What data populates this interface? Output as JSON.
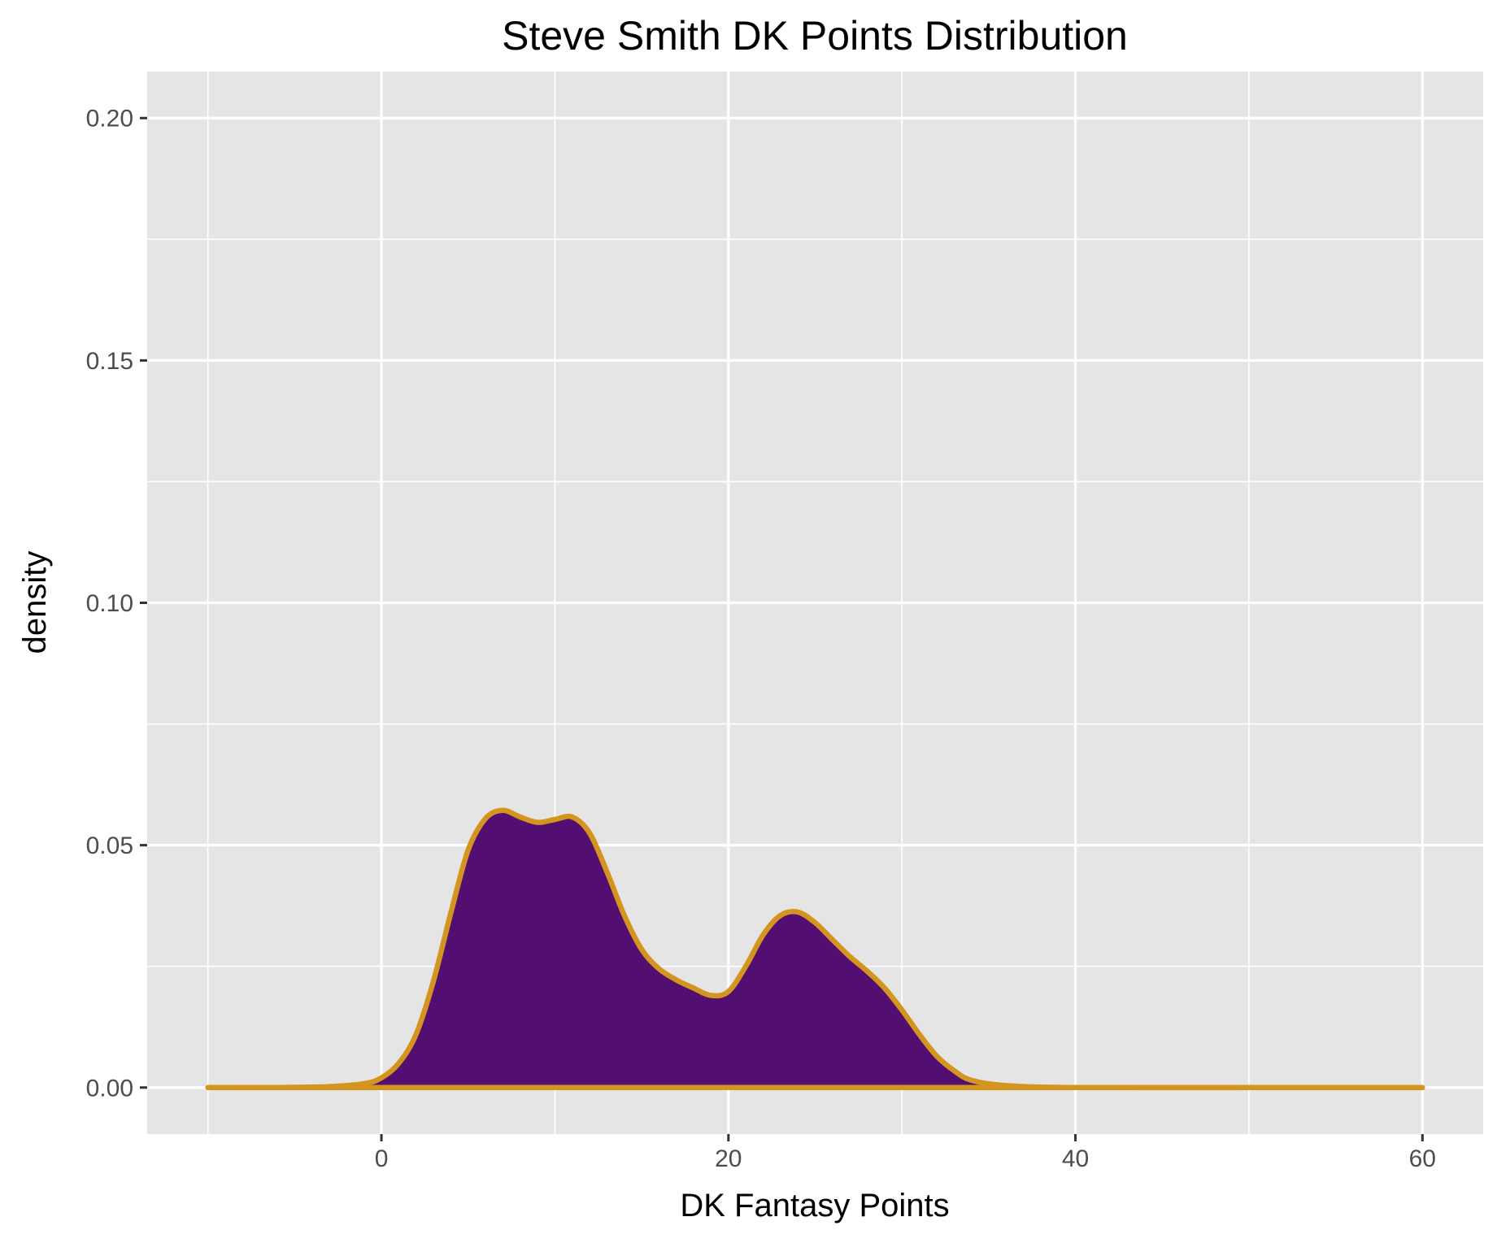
{
  "chart_data": {
    "type": "area",
    "title": "Steve Smith DK Points Distribution",
    "xlabel": "DK Fantasy Points",
    "ylabel": "density",
    "xlim": [
      -13.5,
      63.5
    ],
    "ylim": [
      -0.0096,
      0.2096
    ],
    "x_ticks": [
      0,
      20,
      40,
      60
    ],
    "x_tick_labels": [
      "0",
      "20",
      "40",
      "60"
    ],
    "x_minor_ticks": [
      -10,
      10,
      30,
      50
    ],
    "y_ticks": [
      0,
      0.05,
      0.1,
      0.15,
      0.2
    ],
    "y_tick_labels": [
      "0.00",
      "0.05",
      "0.10",
      "0.15",
      "0.20"
    ],
    "y_minor_ticks": [
      0.025,
      0.075,
      0.125,
      0.175
    ],
    "grid": true,
    "legend": "none",
    "colors": {
      "panel_background": "#e5e5e5",
      "grid": "#ffffff",
      "fill": "#530e72",
      "line": "#d4951f",
      "tick_label": "#4d4d4d",
      "tick_mark": "#333333"
    },
    "series": [
      {
        "x": [
          -10,
          -6,
          -3,
          -1,
          0,
          1,
          2,
          3,
          4,
          5,
          6,
          7,
          8,
          9,
          10,
          11,
          12,
          13,
          14,
          15,
          16,
          17,
          18,
          19,
          20,
          21,
          22,
          23,
          24,
          25,
          26,
          27,
          28,
          29,
          30,
          31,
          32,
          33,
          34,
          36,
          40,
          50,
          60
        ],
        "y": [
          0,
          0,
          0.0002,
          0.0008,
          0.002,
          0.005,
          0.011,
          0.022,
          0.036,
          0.049,
          0.0555,
          0.0572,
          0.0558,
          0.0547,
          0.0553,
          0.0558,
          0.0525,
          0.0445,
          0.0355,
          0.0285,
          0.0245,
          0.0222,
          0.0205,
          0.019,
          0.0198,
          0.025,
          0.0315,
          0.0355,
          0.0362,
          0.034,
          0.0305,
          0.027,
          0.024,
          0.0205,
          0.016,
          0.011,
          0.0065,
          0.0035,
          0.0015,
          0.0004,
          0,
          0,
          0
        ]
      }
    ]
  }
}
